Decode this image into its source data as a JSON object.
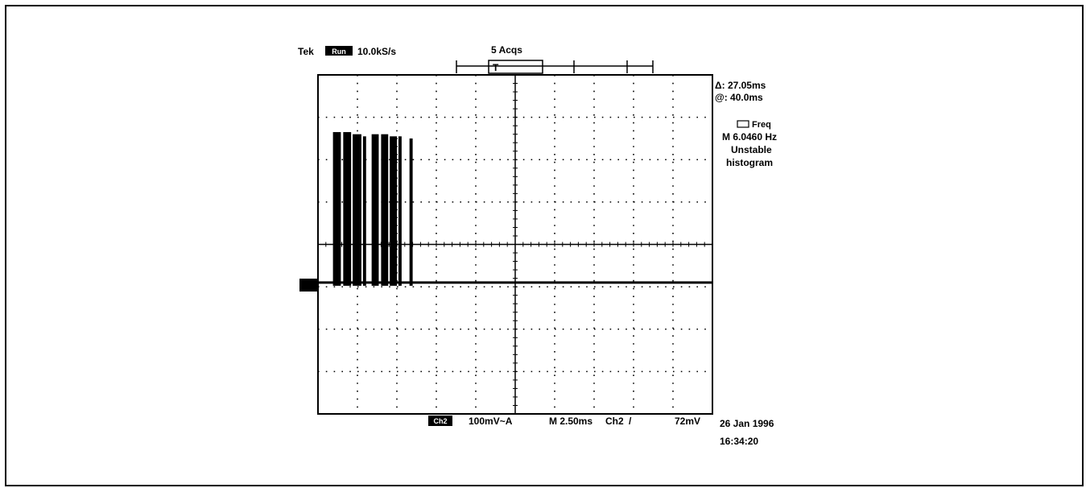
{
  "header": {
    "brand": "Tek",
    "mode": "Run",
    "sample_rate": "10.0kS/s",
    "acquisitions": "5 Acqs",
    "trigger_marker": "T"
  },
  "readouts": {
    "delta": "Δ: 27.05ms",
    "at": "@: 40.0ms",
    "freq_label": "Freq",
    "freq_value": "M 6.0460 Hz",
    "status_line1": "Unstable",
    "status_line2": "histogram"
  },
  "footer": {
    "channel": "Ch2",
    "scale": "100mV~A",
    "timebase": "M 2.50ms",
    "trigger_source": "Ch2",
    "trigger_slope": "/",
    "trigger_level": "72mV",
    "date": "26 Jan 1996",
    "time": "16:34:20"
  },
  "chart_data": {
    "type": "line",
    "title": "",
    "xlabel": "",
    "ylabel": "",
    "x_unit": "ms",
    "y_unit": "divisions",
    "xlim": [
      0,
      25
    ],
    "ylim": [
      -4,
      4
    ],
    "grid": true,
    "x_divisions": 10,
    "y_divisions": 8,
    "baseline_level": -0.9,
    "bursts": [
      {
        "start": 0.95,
        "end": 1.45,
        "top": 2.65
      },
      {
        "start": 1.6,
        "end": 2.1,
        "top": 2.65
      },
      {
        "start": 2.2,
        "end": 2.75,
        "top": 2.6
      },
      {
        "start": 2.85,
        "end": 3.05,
        "top": 2.55
      },
      {
        "start": 3.4,
        "end": 3.85,
        "top": 2.6
      },
      {
        "start": 4.0,
        "end": 4.45,
        "top": 2.6
      },
      {
        "start": 4.55,
        "end": 5.0,
        "top": 2.55
      },
      {
        "start": 5.1,
        "end": 5.3,
        "top": 2.55
      },
      {
        "start": 5.8,
        "end": 6.0,
        "top": 2.5
      }
    ]
  }
}
